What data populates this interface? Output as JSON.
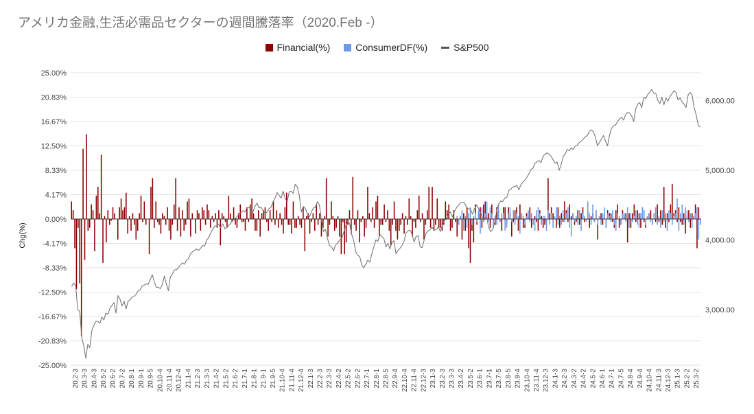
{
  "chart_data": {
    "type": "bar",
    "title": "アメリカ金融,生活必需品セクターの週間騰落率（2020.Feb -）",
    "ylabel": "Chg(%)",
    "ylim": [
      -25,
      25
    ],
    "y2lim": [
      2200,
      6400
    ],
    "grid": true,
    "legend_position": "top",
    "left_ticks": [
      "25.00%",
      "20.83%",
      "16.67%",
      "12.50%",
      "8.33%",
      "4.17%",
      "0.00%",
      "-4.17%",
      "-8.33%",
      "-12.50%",
      "-16.67%",
      "-20.83%",
      "-25.00%"
    ],
    "right_ticks": [
      {
        "value": 6000,
        "label": "6,000.00"
      },
      {
        "value": 5000,
        "label": "5,000.00"
      },
      {
        "value": 4000,
        "label": "4,000.00"
      },
      {
        "value": 3000,
        "label": "3,000.00"
      }
    ],
    "x_labels": [
      "20.2-3",
      "20.3-3",
      "20.4-3",
      "20.5-2",
      "20.6-2",
      "20.7-2",
      "20.8-1",
      "20.9-1",
      "20.9-5",
      "20.10-4",
      "20.11-4",
      "20.12-4",
      "21.1-4",
      "21.2-3",
      "21.3-3",
      "21.4-2",
      "21.5-2",
      "21.6-2",
      "21.7-1",
      "21.8-1",
      "21.9-1",
      "21.9-5",
      "21.10-4",
      "21.11-4",
      "21.12-4",
      "22.1-3",
      "22.2-3",
      "22.3-3",
      "22.4-2",
      "22.5-2",
      "22.6-2",
      "22.7-1",
      "22.8-1",
      "22.8-5",
      "22.9-4",
      "22.10-4",
      "22.11-4",
      "22.12-3",
      "23.1-3",
      "23.2-3",
      "23.3-3",
      "23.4-2",
      "23.5-2",
      "23.6-1",
      "23.7-1",
      "23.7-5",
      "23.8-5",
      "23.9-4",
      "23.10-4",
      "23.11-4",
      "23.12-3",
      "24.1-3",
      "24.2-3",
      "24.3-2",
      "24.4-2",
      "24.5-2",
      "24.6-1",
      "24.7-1",
      "24.7-5",
      "24.8-4",
      "24.9-4",
      "24.10-4",
      "24.11-3",
      "24.12-3",
      "25.1-3",
      "25.2-2",
      "25.3-2"
    ],
    "series": [
      {
        "name": "Financial(%)",
        "type": "bar",
        "color": "#8b0000",
        "values": [
          3.0,
          1.5,
          -5.0,
          -12.0,
          -1.5,
          -11.0,
          -20.0,
          12.0,
          -7.0,
          14.5,
          -2.0,
          -1.5,
          2.5,
          1.5,
          -5.5,
          4.0,
          5.5,
          1.0,
          11.0,
          -7.5,
          0.5,
          -4.0,
          1.5,
          -1.0,
          -0.3,
          2.0,
          1.0,
          0.0,
          -3.5,
          2.0,
          3.5,
          1.5,
          2.0,
          4.5,
          -2.5,
          0.5,
          -2.0,
          1.0,
          -1.0,
          -3.5,
          -2.0,
          1.0,
          4.0,
          -0.5,
          3.0,
          -1.0,
          0.0,
          -6.0,
          5.5,
          7.0,
          -1.5,
          3.0,
          -0.5,
          -1.0,
          -2.5,
          1.0,
          0.5,
          -1.0,
          2.0,
          -2.0,
          -3.5,
          -1.0,
          2.5,
          7.0,
          -2.0,
          2.0,
          -3.0,
          1.5,
          -2.0,
          -1.0,
          3.0,
          3.5,
          -3.0,
          1.0,
          0.0,
          -2.5,
          1.5,
          1.0,
          -2.0,
          2.0,
          1.5,
          -1.0,
          2.5,
          1.5,
          -1.5,
          0.5,
          -0.5,
          1.0,
          -1.5,
          1.5,
          -4.5,
          1.0,
          0.5,
          -0.5,
          -1.5,
          4.0,
          1.0,
          -0.5,
          2.0,
          -1.0,
          -1.5,
          1.0,
          2.5,
          -0.5,
          -0.5,
          -2.0,
          2.0,
          -0.5,
          2.5,
          3.5,
          1.0,
          -2.0,
          -2.0,
          1.5,
          -3.0,
          1.0,
          1.5,
          2.0,
          -0.5,
          -2.0,
          1.5,
          -0.5,
          3.0,
          -1.0,
          1.5,
          -1.5,
          1.0,
          -1.0,
          -2.5,
          2.0,
          4.5,
          -1.0,
          -1.0,
          -2.5,
          3.0,
          -1.5,
          -1.5,
          0.5,
          -1.0,
          -1.5,
          2.0,
          -5.5,
          0.5,
          1.0,
          -2.5,
          -0.5,
          1.0,
          -2.0,
          2.5,
          -1.0,
          1.0,
          -3.0,
          -1.5,
          0.5,
          7.0,
          -3.0,
          -1.0,
          3.0,
          0.5,
          -2.0,
          -1.5,
          0.5,
          -3.0,
          -6.0,
          -0.5,
          -6.0,
          -4.0,
          -1.0,
          1.5,
          -2.5,
          7.2,
          -1.0,
          -2.0,
          1.5,
          -4.0,
          -0.5,
          0.5,
          -3.0,
          -1.5,
          5.5,
          1.0,
          -0.5,
          2.0,
          -1.5,
          3.0,
          4.0,
          -3.0,
          -1.0,
          -1.0,
          2.5,
          -0.5,
          1.5,
          -2.0,
          -4.5,
          -1.0,
          3.0,
          -2.0,
          -3.5,
          -2.0,
          -1.0,
          1.0,
          -2.5,
          0.5,
          -1.0,
          3.5,
          0.5,
          -3.0,
          -0.5,
          -1.5,
          1.5,
          4.0,
          -0.5,
          1.0,
          -3.5,
          -1.0,
          1.5,
          5.5,
          -1.5,
          5.5,
          -2.0,
          -1.0,
          3.5,
          -1.5,
          -1.5,
          -2.0,
          -1.0,
          3.0,
          1.5,
          2.5,
          -2.0,
          -1.5,
          1.5,
          -0.5,
          -3.0,
          -1.0,
          0.5,
          -3.5,
          1.0,
          -2.0,
          2.0,
          -5.0,
          -7.5,
          -2.0,
          -4.0,
          2.5,
          -1.0,
          1.0,
          2.0,
          -1.5,
          2.5,
          3.0,
          1.0,
          1.0,
          -1.5,
          2.5,
          -0.5,
          -1.0,
          2.0,
          1.5,
          -0.5,
          -2.0,
          2.0,
          2.0,
          -1.0,
          2.0,
          1.0,
          -3.0,
          -0.5,
          1.5,
          2.0,
          -2.0,
          2.5,
          1.0,
          -1.5,
          -1.5,
          1.0,
          0.5,
          2.0,
          -1.5,
          0.0,
          0.5,
          -0.5,
          -2.0,
          1.5,
          0.5,
          -1.5,
          -1.0,
          -0.5,
          7.0,
          1.0,
          2.0,
          1.0,
          0.0,
          -1.5,
          2.0,
          -1.5,
          1.0,
          -0.5,
          3.0,
          1.5,
          -0.5,
          2.5,
          0.5,
          1.0,
          -1.0,
          -0.5,
          1.5,
          -1.0,
          1.0,
          2.0,
          -0.5,
          0.0,
          1.5,
          -1.5,
          0.5,
          1.0,
          -0.5,
          1.5,
          -3.5,
          0.5,
          1.0,
          -1.0,
          1.0,
          -1.5,
          1.5,
          1.0,
          1.0,
          -0.5,
          -1.5,
          1.5,
          2.5,
          -1.5,
          -1.0,
          1.5,
          0.5,
          1.0,
          -4.0,
          1.0,
          -1.5,
          1.0,
          2.5,
          -0.5,
          1.5,
          1.0,
          -1.5,
          2.0,
          -0.5,
          -1.5,
          0.5,
          1.0,
          1.5,
          -1.0,
          1.0,
          -0.5,
          2.5,
          -0.5,
          1.5,
          -1.0,
          5.5,
          -1.5,
          1.0,
          -0.5,
          2.5,
          6.0,
          1.0,
          1.5,
          -0.5,
          2.0,
          -0.5,
          -1.0,
          1.0,
          -2.5,
          0.5,
          1.5,
          -1.5,
          1.0,
          0.5,
          2.5,
          -5.0,
          2.0,
          -1.0
        ]
      },
      {
        "name": "ConsumerDF(%)",
        "type": "bar",
        "color": "#6f9ae5",
        "values": [
          0.5,
          -1.0,
          0.5,
          1.5,
          -2.0,
          0.5,
          -1.5,
          1.0,
          2.0,
          -1.0,
          0.5,
          1.0,
          -0.5,
          1.5,
          -2.5,
          2.0,
          -0.5,
          1.0,
          3.0,
          -0.5,
          2.0,
          1.0,
          -1.5,
          0.5,
          -1.0,
          2.5,
          -0.5,
          1.0,
          1.0,
          -2.0,
          -1.5,
          1.0,
          2.0,
          -0.5,
          1.5,
          -1.0,
          1.0,
          0.5,
          -2.5,
          1.0,
          0.5,
          -1.0,
          0.5,
          1.5,
          -0.5,
          1.0,
          -1.0,
          -2.0,
          1.5,
          2.0,
          1.0,
          -1.0,
          0.5,
          0.5,
          -2.0,
          1.5,
          -1.0,
          1.0,
          -1.5,
          0.5,
          2.0,
          -1.0,
          0.5,
          -1.0,
          1.5,
          -0.5,
          1.0,
          2.0,
          -1.5,
          -3.0,
          1.0,
          -0.5,
          0.5,
          -1.0,
          1.5,
          -2.0,
          1.0,
          0.5,
          -0.5,
          3.0,
          1.0,
          -1.0,
          2.5,
          -0.5,
          1.5,
          -1.0,
          0.5,
          -1.0,
          1.0,
          2.0,
          -1.5,
          1.0,
          0.5,
          -0.5,
          1.5,
          -1.0,
          -2.0,
          1.0,
          0.5,
          -1.0,
          1.0,
          1.0,
          -0.5,
          2.0,
          -1.5,
          1.0,
          -0.5,
          0.5,
          1.5,
          -1.0,
          -1.5,
          1.0,
          2.0,
          1.5,
          -1.0,
          0.5,
          1.0,
          -0.5,
          -1.0,
          1.0,
          2.0,
          -1.0,
          0.5,
          -1.5,
          1.5,
          -0.5,
          1.0,
          -2.0,
          1.5,
          1.0,
          -1.0,
          0.5,
          1.0,
          3.5,
          -2.0,
          1.0,
          2.5,
          -1.0,
          2.0,
          1.5,
          -0.5,
          1.0,
          -1.5,
          0.5,
          1.0,
          2.0,
          -3.5,
          -1.0
        ]
      },
      {
        "name": "S&P500",
        "type": "line",
        "color": "#777777",
        "axis": "right",
        "values": [
          3330,
          3380,
          3340,
          3000,
          2970,
          2600,
          2480,
          2300,
          2500,
          2450,
          2700,
          2770,
          2830,
          2830,
          2800,
          2890,
          2850,
          2950,
          2930,
          3020,
          3060,
          3100,
          2950,
          3200,
          3150,
          3050,
          3120,
          3010,
          3120,
          3140,
          3180,
          3190,
          3220,
          3270,
          3280,
          3340,
          3350,
          3370,
          3360,
          3430,
          3500,
          3400,
          3320,
          3320,
          3300,
          3360,
          3480,
          3370,
          3270,
          3470,
          3510,
          3570,
          3570,
          3600,
          3640,
          3670,
          3650,
          3710,
          3730,
          3800,
          3830,
          3850,
          3870,
          3850,
          3880,
          3920,
          3910,
          4000,
          4030,
          4100,
          4150,
          4200,
          4200,
          4220,
          4180,
          4230,
          4160,
          4180,
          4210,
          4240,
          4280,
          4300,
          4330,
          4370,
          4390,
          4420,
          4400,
          4460,
          4470,
          4430,
          4400,
          4480,
          4530,
          4460,
          4470,
          4420,
          4380,
          4400,
          4450,
          4470,
          4550,
          4600,
          4680,
          4640,
          4600,
          4700,
          4590,
          4550,
          4690,
          4700,
          4670,
          4800,
          4760,
          4640,
          4400,
          4480,
          4450,
          4380,
          4330,
          4400,
          4460,
          4470,
          4550,
          4500,
          4280,
          4120,
          4150,
          4020,
          3920,
          3900,
          3840,
          3930,
          3950,
          4000,
          4020,
          4100,
          4200,
          4270,
          4230,
          4080,
          3990,
          3830,
          3780,
          3760,
          3640,
          3600,
          3650,
          3710,
          3680,
          3800,
          3900,
          4000,
          3980,
          4080,
          4050,
          4020,
          3900,
          3950,
          3870,
          3960,
          3990,
          3800,
          3850,
          3880,
          3920,
          3980,
          4100,
          4130,
          4140,
          4080,
          3970,
          4050,
          4060,
          3900,
          3890,
          4000,
          4100,
          4130,
          4150,
          4180,
          4140,
          4150,
          4190,
          4120,
          4210,
          4280,
          4300,
          4380,
          4400,
          4330,
          4410,
          4460,
          4500,
          4530,
          4540,
          4530,
          4470,
          4450,
          4440,
          4370,
          4450,
          4500,
          4450,
          4380,
          4320,
          4290,
          4330,
          4180,
          4120,
          4150,
          4250,
          4420,
          4520,
          4560,
          4550,
          4600,
          4610,
          4710,
          4730,
          4760,
          4770,
          4780,
          4720,
          4790,
          4830,
          4860,
          4900,
          4950,
          5010,
          5030,
          5100,
          5120,
          5140,
          5110,
          5200,
          5230,
          5250,
          5230,
          5200,
          5150,
          5100,
          5120,
          5000,
          5080,
          5200,
          5230,
          5300,
          5280,
          5320,
          5300,
          5350,
          5360,
          5400,
          5420,
          5450,
          5480,
          5500,
          5560,
          5580,
          5550,
          5480,
          5350,
          5400,
          5450,
          5500,
          5420,
          5350,
          5500,
          5600,
          5640,
          5650,
          5700,
          5740,
          5760,
          5720,
          5800,
          5830,
          5820,
          5780,
          5700,
          5880,
          5950,
          5970,
          5900,
          6050,
          6030,
          6090,
          6120,
          6160,
          6110,
          6100,
          6000,
          5960,
          6050,
          5940,
          6040,
          5990,
          6060,
          6100,
          6140,
          6120,
          6010,
          6040,
          5980,
          5950,
          5900,
          6080,
          6120,
          6080,
          5900,
          5800,
          5650,
          5620
        ]
      }
    ]
  }
}
